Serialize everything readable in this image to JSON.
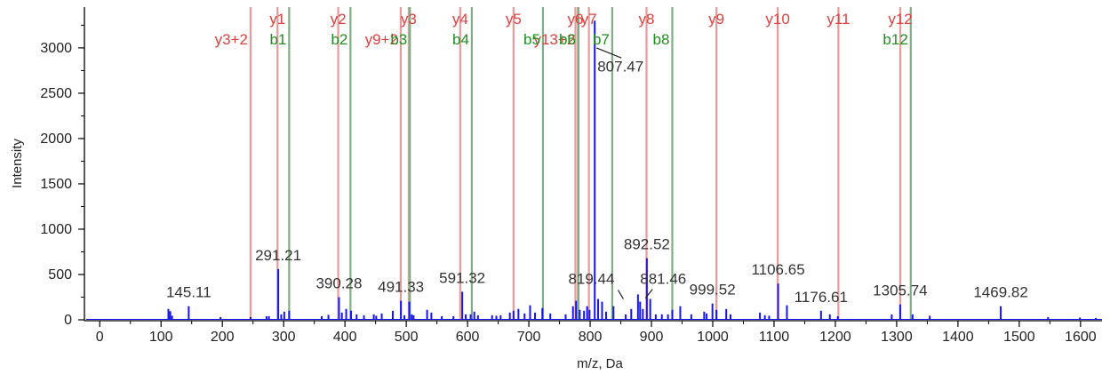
{
  "chart_data": {
    "type": "bar",
    "xlabel": "m/z, Da",
    "ylabel": "Intensity",
    "xlim": [
      -25,
      1635
    ],
    "ylim": [
      0,
      3450
    ],
    "x_ticks": [
      0,
      100,
      200,
      300,
      400,
      500,
      600,
      700,
      800,
      900,
      1000,
      1100,
      1200,
      1300,
      1400,
      1500,
      1600
    ],
    "y_ticks": [
      0,
      500,
      1000,
      1500,
      2000,
      2500,
      3000
    ],
    "colors": {
      "peak": "#1414ff",
      "y_ion": "#e04040",
      "b_ion": "#1f8f1f",
      "y_ion_line": "#e89a9a",
      "b_ion_line": "#7fae82"
    },
    "peaks": [
      {
        "mz": 112,
        "intensity": 120
      },
      {
        "mz": 115,
        "intensity": 95
      },
      {
        "mz": 118,
        "intensity": 45
      },
      {
        "mz": 145.11,
        "intensity": 150
      },
      {
        "mz": 197,
        "intensity": 30
      },
      {
        "mz": 246,
        "intensity": 30
      },
      {
        "mz": 272,
        "intensity": 40
      },
      {
        "mz": 276,
        "intensity": 40
      },
      {
        "mz": 291.21,
        "intensity": 560
      },
      {
        "mz": 296,
        "intensity": 60
      },
      {
        "mz": 301,
        "intensity": 90
      },
      {
        "mz": 309,
        "intensity": 100
      },
      {
        "mz": 362,
        "intensity": 40
      },
      {
        "mz": 373,
        "intensity": 55
      },
      {
        "mz": 390.28,
        "intensity": 250
      },
      {
        "mz": 395,
        "intensity": 80
      },
      {
        "mz": 402,
        "intensity": 120
      },
      {
        "mz": 410,
        "intensity": 100
      },
      {
        "mz": 419,
        "intensity": 60
      },
      {
        "mz": 431,
        "intensity": 50
      },
      {
        "mz": 447,
        "intensity": 60
      },
      {
        "mz": 451,
        "intensity": 45
      },
      {
        "mz": 460,
        "intensity": 70
      },
      {
        "mz": 478,
        "intensity": 100
      },
      {
        "mz": 491.33,
        "intensity": 210
      },
      {
        "mz": 497,
        "intensity": 50
      },
      {
        "mz": 505,
        "intensity": 200
      },
      {
        "mz": 509,
        "intensity": 60
      },
      {
        "mz": 512,
        "intensity": 50
      },
      {
        "mz": 534,
        "intensity": 110
      },
      {
        "mz": 541,
        "intensity": 80
      },
      {
        "mz": 558,
        "intensity": 40
      },
      {
        "mz": 577,
        "intensity": 40
      },
      {
        "mz": 591.32,
        "intensity": 310
      },
      {
        "mz": 597,
        "intensity": 60
      },
      {
        "mz": 605,
        "intensity": 60
      },
      {
        "mz": 611,
        "intensity": 90
      },
      {
        "mz": 617,
        "intensity": 50
      },
      {
        "mz": 640,
        "intensity": 50
      },
      {
        "mz": 647,
        "intensity": 45
      },
      {
        "mz": 654,
        "intensity": 50
      },
      {
        "mz": 669,
        "intensity": 80
      },
      {
        "mz": 675,
        "intensity": 100
      },
      {
        "mz": 683,
        "intensity": 120
      },
      {
        "mz": 693,
        "intensity": 70
      },
      {
        "mz": 702,
        "intensity": 160
      },
      {
        "mz": 710,
        "intensity": 80
      },
      {
        "mz": 722,
        "intensity": 130
      },
      {
        "mz": 735,
        "intensity": 70
      },
      {
        "mz": 760,
        "intensity": 60
      },
      {
        "mz": 772,
        "intensity": 150
      },
      {
        "mz": 777,
        "intensity": 210
      },
      {
        "mz": 783,
        "intensity": 110
      },
      {
        "mz": 790,
        "intensity": 100
      },
      {
        "mz": 795,
        "intensity": 150
      },
      {
        "mz": 799,
        "intensity": 110
      },
      {
        "mz": 807.47,
        "intensity": 3300
      },
      {
        "mz": 813,
        "intensity": 230
      },
      {
        "mz": 819.44,
        "intensity": 200
      },
      {
        "mz": 826,
        "intensity": 90
      },
      {
        "mz": 838,
        "intensity": 150
      },
      {
        "mz": 858,
        "intensity": 60
      },
      {
        "mz": 867,
        "intensity": 120
      },
      {
        "mz": 878,
        "intensity": 280
      },
      {
        "mz": 881.46,
        "intensity": 200
      },
      {
        "mz": 886,
        "intensity": 120
      },
      {
        "mz": 892.52,
        "intensity": 680
      },
      {
        "mz": 898,
        "intensity": 230
      },
      {
        "mz": 907,
        "intensity": 60
      },
      {
        "mz": 917,
        "intensity": 60
      },
      {
        "mz": 927,
        "intensity": 60
      },
      {
        "mz": 934,
        "intensity": 110
      },
      {
        "mz": 947,
        "intensity": 150
      },
      {
        "mz": 965,
        "intensity": 60
      },
      {
        "mz": 986,
        "intensity": 90
      },
      {
        "mz": 990,
        "intensity": 70
      },
      {
        "mz": 999.52,
        "intensity": 180
      },
      {
        "mz": 1006,
        "intensity": 110
      },
      {
        "mz": 1022,
        "intensity": 120
      },
      {
        "mz": 1029,
        "intensity": 60
      },
      {
        "mz": 1077,
        "intensity": 80
      },
      {
        "mz": 1085,
        "intensity": 50
      },
      {
        "mz": 1092,
        "intensity": 45
      },
      {
        "mz": 1106.65,
        "intensity": 400
      },
      {
        "mz": 1121,
        "intensity": 160
      },
      {
        "mz": 1176.61,
        "intensity": 100
      },
      {
        "mz": 1191,
        "intensity": 60
      },
      {
        "mz": 1204,
        "intensity": 40
      },
      {
        "mz": 1292,
        "intensity": 60
      },
      {
        "mz": 1305.74,
        "intensity": 170
      },
      {
        "mz": 1326,
        "intensity": 60
      },
      {
        "mz": 1354,
        "intensity": 45
      },
      {
        "mz": 1469.82,
        "intensity": 150
      },
      {
        "mz": 1547,
        "intensity": 30
      },
      {
        "mz": 1599,
        "intensity": 25
      },
      {
        "mz": 1625,
        "intensity": 20
      }
    ],
    "peak_labels": [
      {
        "text": "145.11",
        "mz": 145.11,
        "intensity": 150,
        "position": "above"
      },
      {
        "text": "291.21",
        "mz": 291.21,
        "intensity": 560,
        "position": "above"
      },
      {
        "text": "390.28",
        "mz": 390.28,
        "intensity": 250,
        "position": "above"
      },
      {
        "text": "491.33",
        "mz": 491.33,
        "intensity": 210,
        "position": "above"
      },
      {
        "text": "591.32",
        "mz": 591.32,
        "intensity": 310,
        "position": "above"
      },
      {
        "text": "819.44",
        "mz": 819.44,
        "intensity": 200,
        "position": "leader-left"
      },
      {
        "text": "807.47",
        "mz": 807.47,
        "intensity": 3300,
        "position": "leader-right"
      },
      {
        "text": "892.52",
        "mz": 892.52,
        "intensity": 680,
        "position": "above"
      },
      {
        "text": "881.46",
        "mz": 881.46,
        "intensity": 200,
        "position": "leader-right"
      },
      {
        "text": "999.52",
        "mz": 999.52,
        "intensity": 180,
        "position": "above"
      },
      {
        "text": "1106.65",
        "mz": 1106.65,
        "intensity": 400,
        "position": "above"
      },
      {
        "text": "1176.61",
        "mz": 1176.61,
        "intensity": 100,
        "position": "above"
      },
      {
        "text": "1305.74",
        "mz": 1305.74,
        "intensity": 170,
        "position": "above"
      },
      {
        "text": "1469.82",
        "mz": 1469.82,
        "intensity": 150,
        "position": "above"
      }
    ],
    "y_ions": [
      {
        "label": "y1",
        "mz": 290
      },
      {
        "label": "y2",
        "mz": 389
      },
      {
        "label": "y3",
        "mz": 504
      },
      {
        "label": "y4",
        "mz": 588
      },
      {
        "label": "y5",
        "mz": 675
      },
      {
        "label": "y6",
        "mz": 776
      },
      {
        "label": "y7",
        "mz": 798
      },
      {
        "label": "y8",
        "mz": 892
      },
      {
        "label": "y9",
        "mz": 1006
      },
      {
        "label": "y10",
        "mz": 1106
      },
      {
        "label": "y11",
        "mz": 1205
      },
      {
        "label": "y12",
        "mz": 1306
      },
      {
        "label": "y3+2",
        "mz": 246
      },
      {
        "label": "y9+2",
        "mz": 491
      },
      {
        "label": "y13+2",
        "mz": 780
      }
    ],
    "b_ions": [
      {
        "label": "b1",
        "mz": 309
      },
      {
        "label": "b2",
        "mz": 409
      },
      {
        "label": "b3",
        "mz": 506
      },
      {
        "label": "b4",
        "mz": 607
      },
      {
        "label": "b5",
        "mz": 723
      },
      {
        "label": "b6",
        "mz": 781
      },
      {
        "label": "b7",
        "mz": 836
      },
      {
        "label": "b8",
        "mz": 934
      },
      {
        "label": "b12",
        "mz": 1323
      }
    ]
  }
}
